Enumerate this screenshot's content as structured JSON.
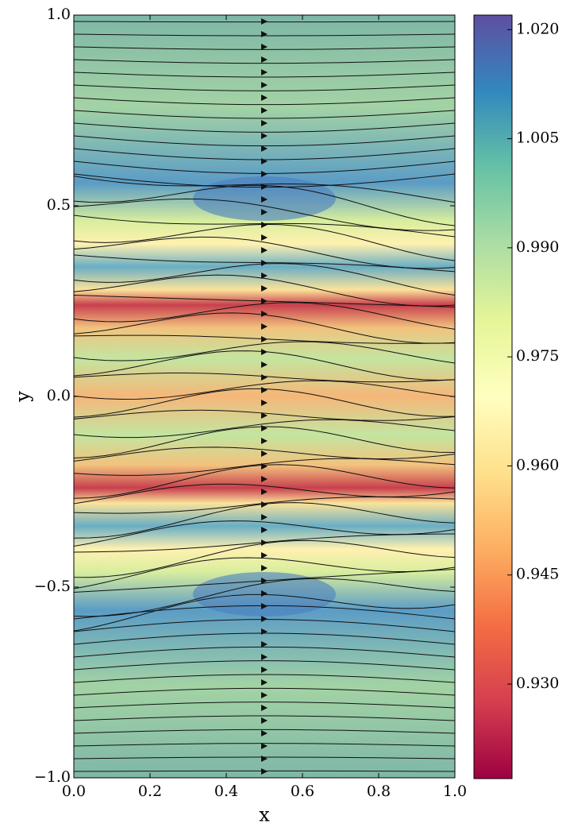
{
  "chart_data": {
    "type": "heatmap",
    "xlabel": "x",
    "ylabel": "y",
    "xlim": [
      0,
      1
    ],
    "ylim": [
      -1,
      1
    ],
    "xticks": [
      {
        "value": 0,
        "label": "0.0"
      },
      {
        "value": 0.2,
        "label": "0.2"
      },
      {
        "value": 0.4,
        "label": "0.4"
      },
      {
        "value": 0.6,
        "label": "0.6"
      },
      {
        "value": 0.8,
        "label": "0.8"
      },
      {
        "value": 1,
        "label": "1.0"
      }
    ],
    "yticks": [
      {
        "value": -1,
        "label": "−1.0"
      },
      {
        "value": -0.5,
        "label": "−0.5"
      },
      {
        "value": 0,
        "label": "0.0"
      },
      {
        "value": 0.5,
        "label": "0.5"
      },
      {
        "value": 1,
        "label": "1.0"
      }
    ],
    "colorbar": {
      "lim": [
        0.917,
        1.022
      ],
      "ticks": [
        {
          "value": 0.93,
          "label": "0.930"
        },
        {
          "value": 0.945,
          "label": "0.945"
        },
        {
          "value": 0.96,
          "label": "0.960"
        },
        {
          "value": 0.975,
          "label": "0.975"
        },
        {
          "value": 0.99,
          "label": "0.990"
        },
        {
          "value": 1.005,
          "label": "1.005"
        },
        {
          "value": 1.02,
          "label": "1.020"
        }
      ],
      "colormap": [
        "#9e0142",
        "#d53e4f",
        "#f46d43",
        "#fdae61",
        "#fee08b",
        "#ffffbf",
        "#e6f598",
        "#abdda4",
        "#66c2a5",
        "#3288bd",
        "#5e4fa2"
      ]
    }
  }
}
